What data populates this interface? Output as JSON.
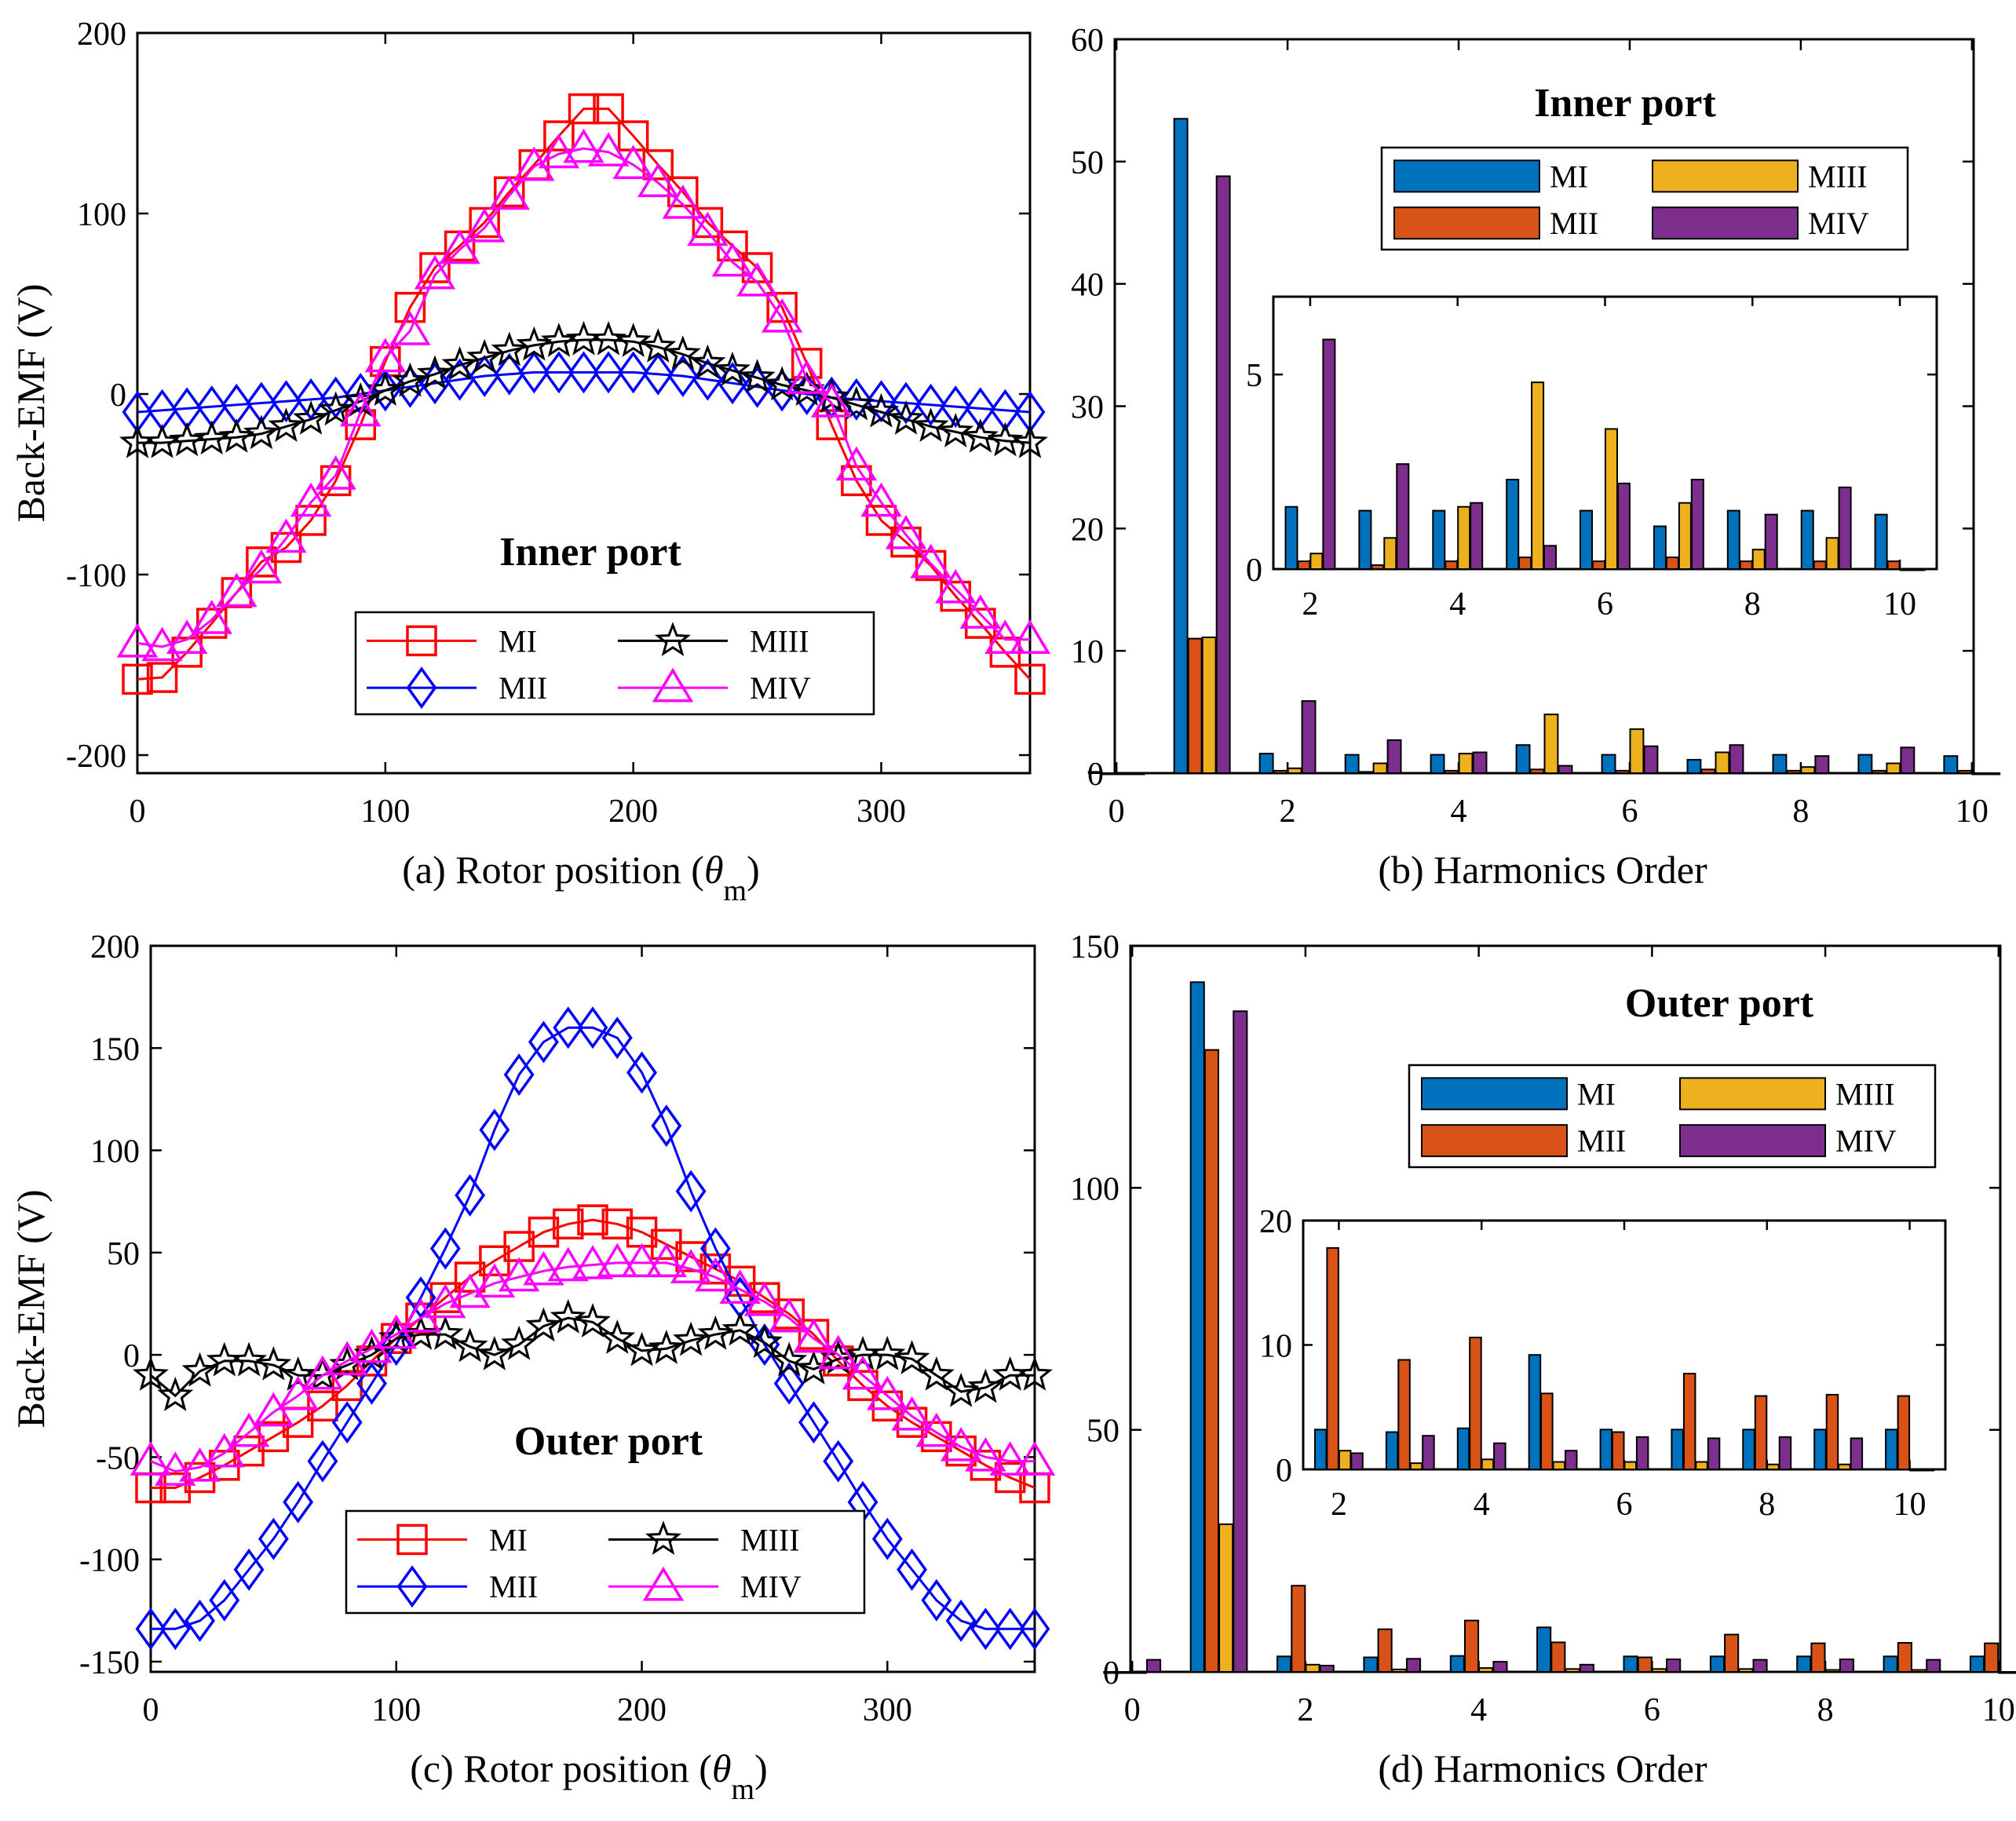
{
  "figure": {
    "colors": {
      "MI_line": "#ff0000",
      "MII_line": "#0000ff",
      "MIII_line": "#000000",
      "MIV_line": "#ff00ff",
      "MI_bar": "#0072bd",
      "MII_bar": "#d95319",
      "MIII_bar": "#edb120",
      "MIV_bar": "#7e2f8e"
    }
  },
  "chart_data": [
    {
      "id": "a",
      "type": "line",
      "caption_pre": "(a) Rotor position (",
      "caption_theta": "θ",
      "caption_sub": "m",
      "caption_post": ")",
      "ylabel": "Back-EMF (V)",
      "title": "Inner port",
      "xlim": [
        0,
        360
      ],
      "ylim": [
        -210,
        200
      ],
      "xticks": [
        0,
        100,
        200,
        300
      ],
      "yticks": [
        -200,
        -100,
        0,
        100,
        200
      ],
      "legend": [
        "MI",
        "MII",
        "MIII",
        "MIV"
      ],
      "x": [
        0,
        10,
        20,
        30,
        40,
        50,
        60,
        70,
        80,
        90,
        100,
        110,
        120,
        130,
        140,
        150,
        160,
        170,
        180,
        190,
        200,
        210,
        220,
        230,
        240,
        250,
        260,
        270,
        280,
        290,
        300,
        310,
        320,
        330,
        340,
        350,
        360
      ],
      "series": [
        {
          "name": "MI",
          "marker": "square",
          "values": [
            -158,
            -157,
            -143,
            -127,
            -110,
            -93,
            -85,
            -70,
            -48,
            -17,
            18,
            48,
            70,
            82,
            95,
            112,
            127,
            143,
            158,
            158,
            143,
            127,
            112,
            95,
            82,
            70,
            48,
            17,
            -17,
            -48,
            -70,
            -82,
            -95,
            -112,
            -127,
            -143,
            -158
          ]
        },
        {
          "name": "MII",
          "marker": "diamond",
          "values": [
            -10,
            -9,
            -8,
            -7,
            -6,
            -5,
            -4,
            -3,
            -2,
            0,
            2,
            4,
            6,
            8,
            10,
            11,
            12,
            12,
            12,
            12,
            12,
            11,
            10,
            8,
            6,
            4,
            2,
            0,
            -2,
            -3,
            -4,
            -5,
            -6,
            -7,
            -8,
            -9,
            -10
          ]
        },
        {
          "name": "MIII",
          "marker": "star",
          "values": [
            -27,
            -27,
            -26,
            -25,
            -24,
            -22,
            -18,
            -14,
            -9,
            -4,
            2,
            7,
            11,
            16,
            20,
            24,
            27,
            29,
            30,
            30,
            29,
            26,
            22,
            17,
            13,
            9,
            5,
            2,
            -2,
            -6,
            -10,
            -14,
            -18,
            -21,
            -24,
            -26,
            -27
          ]
        },
        {
          "name": "MIV",
          "marker": "triangle",
          "values": [
            -138,
            -140,
            -136,
            -125,
            -110,
            -97,
            -80,
            -60,
            -45,
            -10,
            20,
            35,
            66,
            80,
            92,
            110,
            126,
            133,
            136,
            134,
            127,
            117,
            105,
            90,
            73,
            62,
            42,
            8,
            -5,
            -40,
            -60,
            -78,
            -94,
            -108,
            -122,
            -136,
            -136
          ]
        }
      ]
    },
    {
      "id": "b",
      "type": "bar",
      "caption": "(b) Harmonics Order",
      "title": "Inner port",
      "xlim": [
        0,
        10
      ],
      "ylim": [
        0,
        60
      ],
      "xticks": [
        0,
        2,
        4,
        6,
        8,
        10
      ],
      "yticks": [
        0,
        10,
        20,
        30,
        40,
        50,
        60
      ],
      "legend": [
        "MI",
        "MII",
        "MIII",
        "MIV"
      ],
      "categories": [
        0,
        1,
        2,
        3,
        4,
        5,
        6,
        7,
        8,
        9,
        10
      ],
      "series": [
        {
          "name": "MI",
          "values": [
            0.1,
            53.5,
            1.6,
            1.5,
            1.5,
            2.3,
            1.5,
            1.1,
            1.5,
            1.5,
            1.4
          ]
        },
        {
          "name": "MII",
          "values": [
            0,
            11,
            0.2,
            0.1,
            0.2,
            0.3,
            0.2,
            0.3,
            0.2,
            0.2,
            0.2
          ]
        },
        {
          "name": "MIII",
          "values": [
            0,
            11.1,
            0.4,
            0.8,
            1.6,
            4.8,
            3.6,
            1.7,
            0.5,
            0.8,
            0
          ]
        },
        {
          "name": "MIV",
          "values": [
            0,
            48.8,
            5.9,
            2.7,
            1.7,
            0.6,
            2.2,
            2.3,
            1.4,
            2.1,
            0
          ]
        }
      ],
      "inset": {
        "xlim": [
          1.5,
          10.5
        ],
        "ylim": [
          0,
          7
        ],
        "xticks": [
          2,
          4,
          6,
          8,
          10
        ],
        "yticks": [
          0,
          5
        ]
      }
    },
    {
      "id": "c",
      "type": "line",
      "caption_pre": "(c) Rotor position (",
      "caption_theta": "θ",
      "caption_sub": "m",
      "caption_post": ")",
      "ylabel": "Back-EMF (V)",
      "title": "Outer port",
      "xlim": [
        0,
        360
      ],
      "ylim": [
        -155,
        200
      ],
      "xticks": [
        0,
        100,
        200,
        300
      ],
      "yticks": [
        -150,
        -100,
        -50,
        0,
        50,
        100,
        150,
        200
      ],
      "legend": [
        "MI",
        "MII",
        "MIII",
        "MIV"
      ],
      "x": [
        0,
        10,
        20,
        30,
        40,
        50,
        60,
        70,
        80,
        90,
        100,
        110,
        120,
        130,
        140,
        150,
        160,
        170,
        180,
        190,
        200,
        210,
        220,
        230,
        240,
        250,
        260,
        270,
        280,
        290,
        300,
        310,
        320,
        330,
        340,
        350,
        360
      ],
      "series": [
        {
          "name": "MI",
          "marker": "square",
          "values": [
            -65,
            -65,
            -60,
            -54,
            -47,
            -40,
            -33,
            -25,
            -15,
            -3,
            8,
            18,
            28,
            38,
            46,
            53,
            60,
            64,
            66,
            64,
            60,
            54,
            48,
            42,
            36,
            28,
            20,
            10,
            -3,
            -15,
            -25,
            -33,
            -40,
            -47,
            -54,
            -60,
            -65
          ]
        },
        {
          "name": "MII",
          "marker": "diamond",
          "values": [
            -134,
            -134,
            -130,
            -120,
            -105,
            -90,
            -72,
            -52,
            -33,
            -14,
            5,
            28,
            52,
            78,
            110,
            137,
            153,
            160,
            160,
            155,
            138,
            112,
            80,
            52,
            28,
            5,
            -14,
            -33,
            -52,
            -72,
            -90,
            -105,
            -120,
            -130,
            -134,
            -134,
            -134
          ]
        },
        {
          "name": "MIII",
          "marker": "star",
          "values": [
            -10,
            -20,
            -8,
            -3,
            -3,
            -5,
            -10,
            -10,
            -5,
            0,
            8,
            10,
            10,
            4,
            0,
            5,
            14,
            18,
            16,
            8,
            2,
            3,
            7,
            10,
            12,
            6,
            -3,
            -7,
            -2,
            0,
            0,
            -2,
            -10,
            -18,
            -16,
            -10,
            -10
          ]
        },
        {
          "name": "MIV",
          "marker": "triangle",
          "values": [
            -52,
            -57,
            -55,
            -48,
            -38,
            -28,
            -20,
            -10,
            -3,
            3,
            10,
            18,
            25,
            30,
            35,
            38,
            41,
            43,
            44,
            45,
            45,
            45,
            42,
            38,
            32,
            26,
            18,
            8,
            0,
            -10,
            -20,
            -30,
            -38,
            -45,
            -50,
            -52,
            -52
          ]
        }
      ]
    },
    {
      "id": "d",
      "type": "bar",
      "caption": "(d) Harmonics Order",
      "title": "Outer port",
      "xlim": [
        0,
        10
      ],
      "ylim": [
        0,
        150
      ],
      "xticks": [
        0,
        2,
        4,
        6,
        8,
        10
      ],
      "yticks": [
        0,
        50,
        100,
        150
      ],
      "legend": [
        "MI",
        "MII",
        "MIII",
        "MIV"
      ],
      "categories": [
        0,
        1,
        2,
        3,
        4,
        5,
        6,
        7,
        8,
        9,
        10
      ],
      "series": [
        {
          "name": "MI",
          "values": [
            0,
            142.5,
            3.2,
            3,
            3.3,
            9.2,
            3.2,
            3.2,
            3.2,
            3.2,
            3.2
          ]
        },
        {
          "name": "MII",
          "values": [
            0,
            128.5,
            17.8,
            8.8,
            10.6,
            6.1,
            3,
            7.7,
            5.9,
            6,
            5.9
          ]
        },
        {
          "name": "MIII",
          "values": [
            0,
            30.5,
            1.5,
            0.5,
            0.8,
            0.6,
            0.6,
            0.6,
            0.4,
            0.4,
            0
          ]
        },
        {
          "name": "MIV",
          "values": [
            2.5,
            136.5,
            1.3,
            2.7,
            2.1,
            1.5,
            2.6,
            2.5,
            2.6,
            2.5,
            0
          ]
        }
      ],
      "inset": {
        "xlim": [
          1.5,
          10.5
        ],
        "ylim": [
          0,
          20
        ],
        "xticks": [
          2,
          4,
          6,
          8,
          10
        ],
        "yticks": [
          0,
          10,
          20
        ]
      }
    }
  ]
}
